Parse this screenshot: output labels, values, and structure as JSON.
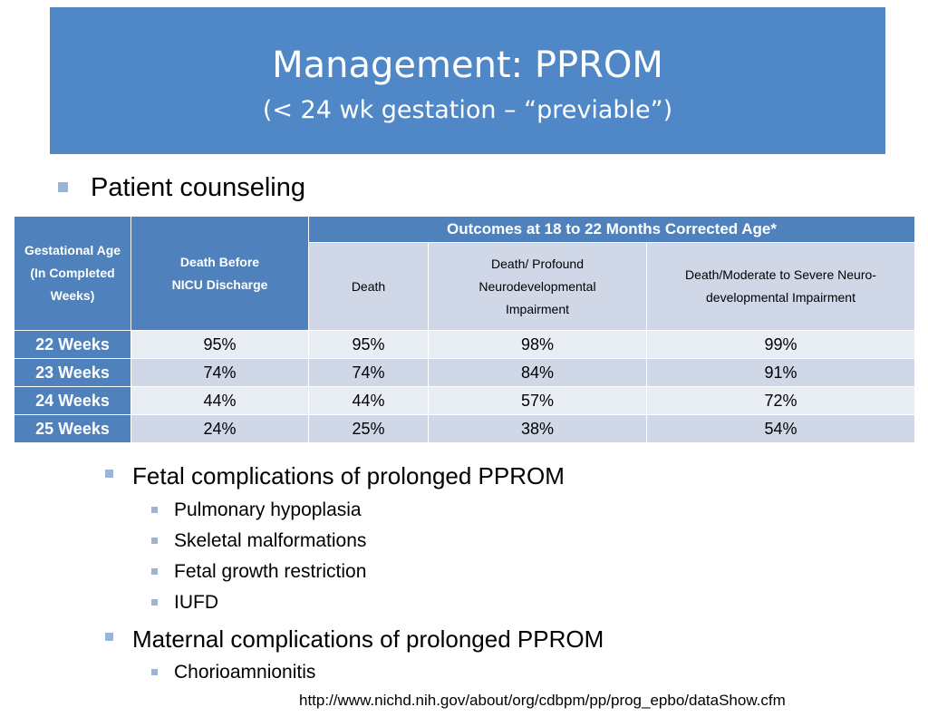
{
  "slide": {
    "title": "Management: PPROM",
    "subtitle": "(< 24 wk gestation – “previable”)"
  },
  "bullets": {
    "patient_counseling": "Patient counseling",
    "fetal": "Fetal complications of prolonged PPROM",
    "fetal_items": [
      "Pulmonary hypoplasia",
      "Skeletal malformations",
      "Fetal growth restriction",
      "IUFD"
    ],
    "maternal": "Maternal complications of prolonged PPROM",
    "maternal_items": [
      "Chorioamnionitis"
    ]
  },
  "table": {
    "col_gest_lines": [
      "Gestational Age",
      "(In Completed",
      "Weeks)"
    ],
    "col_death_before_lines": [
      "Death Before",
      "NICU Discharge"
    ],
    "outcomes_header": "Outcomes at 18 to 22 Months Corrected Age*",
    "sub_death": "Death",
    "sub_profound_lines": [
      "Death/ Profound",
      "Neurodevelopmental",
      "Impairment"
    ],
    "sub_moderate_lines": [
      "Death/Moderate to Severe Neuro-",
      "developmental Impairment"
    ],
    "rows": [
      {
        "label": "22 Weeks",
        "values": [
          "95%",
          "95%",
          "98%",
          "99%"
        ]
      },
      {
        "label": "23 Weeks",
        "values": [
          "74%",
          "74%",
          "84%",
          "91%"
        ]
      },
      {
        "label": "24 Weeks",
        "values": [
          "44%",
          "44%",
          "57%",
          "72%"
        ]
      },
      {
        "label": "25 Weeks",
        "values": [
          "24%",
          "25%",
          "38%",
          "54%"
        ]
      }
    ]
  },
  "source_url": "http://www.nichd.nih.gov/about/org/cdbpm/pp/prog_epbo/dataShow.cfm",
  "colors": {
    "title_bg": "#4f87c7",
    "header_bg": "#4f81bd",
    "cell_light": "#e9edf4",
    "cell_dark": "#d0d8e8",
    "bullet": "#9bb5d9"
  }
}
